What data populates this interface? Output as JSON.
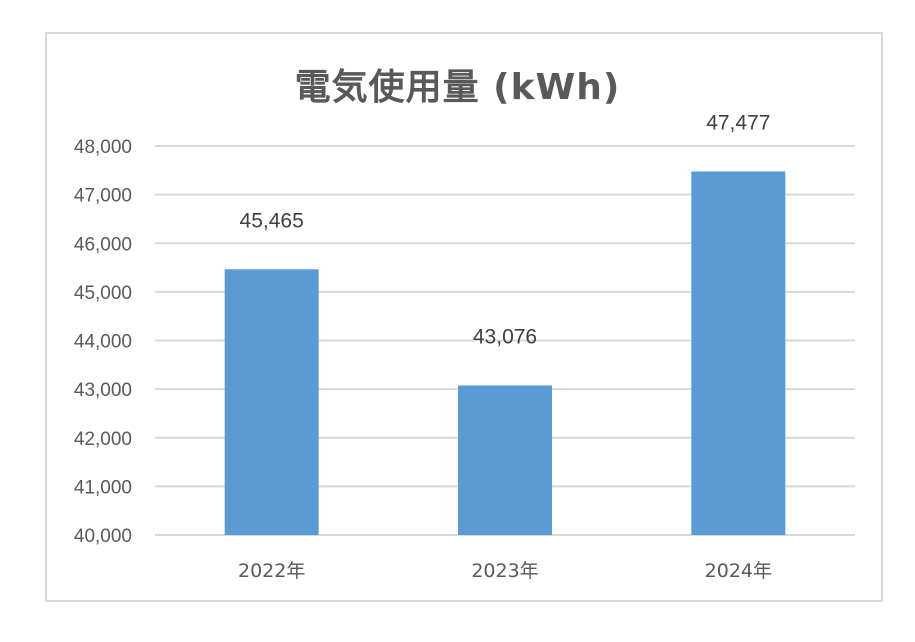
{
  "chart_data": {
    "type": "bar",
    "title": "電気使用量 (kWh)",
    "xlabel": "",
    "ylabel": "",
    "categories": [
      "2022年",
      "2023年",
      "2024年"
    ],
    "values": [
      45465,
      43076,
      47477
    ],
    "data_labels": [
      "45,465",
      "43,076",
      "47,477"
    ],
    "ylim": [
      40000,
      48000
    ],
    "ytick_step": 1000,
    "ytick_labels": [
      "40,000",
      "41,000",
      "42,000",
      "43,000",
      "44,000",
      "45,000",
      "46,000",
      "47,000",
      "48,000"
    ],
    "grid": true,
    "legend": "none",
    "bar_color": "#5b9bd5",
    "grid_color": "#d9d9d9"
  }
}
